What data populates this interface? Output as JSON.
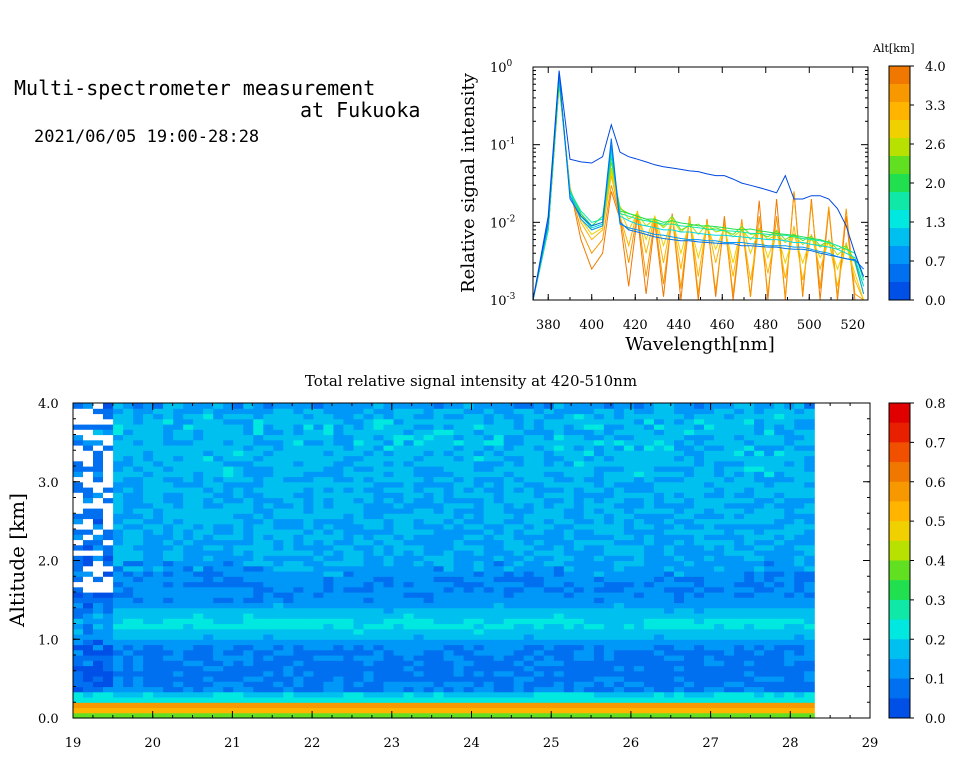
{
  "header": {
    "title_line1": "Multi-spectrometer measurement",
    "title_line2": "at Fukuoka",
    "date_range": "2021/06/05 19:00-28:28"
  },
  "chart_data": [
    {
      "type": "line",
      "title": "",
      "xlabel": "Wavelength[nm]",
      "ylabel": "Relative signal intensity",
      "xlim": [
        373,
        527
      ],
      "ylim": [
        0.001,
        1
      ],
      "yscale": "log",
      "x_ticks": [
        380,
        400,
        420,
        440,
        460,
        480,
        500,
        520
      ],
      "y_ticks": [
        {
          "base": "10",
          "exp": "-3",
          "value": 0.001
        },
        {
          "base": "10",
          "exp": "-2",
          "value": 0.01
        },
        {
          "base": "10",
          "exp": "-1",
          "value": 0.1
        },
        {
          "base": "10",
          "exp": "0",
          "value": 1
        }
      ],
      "colorbar": {
        "label": "Alt[km]",
        "ticks": [
          "4.0",
          "3.3",
          "2.6",
          "2.0",
          "1.3",
          "0.7",
          "0.0"
        ],
        "colors": [
          "#f07800",
          "#f89800",
          "#ffb400",
          "#f0d000",
          "#b8e000",
          "#60e020",
          "#20e050",
          "#10e8a8",
          "#00e8e0",
          "#00c0f0",
          "#0098f8",
          "#0070f0",
          "#0050e8"
        ]
      },
      "x": [
        373,
        380,
        385,
        390,
        395,
        400,
        405,
        409,
        413,
        417,
        421,
        425,
        429,
        433,
        437,
        441,
        445,
        449,
        453,
        457,
        461,
        465,
        469,
        473,
        477,
        481,
        485,
        489,
        493,
        497,
        501,
        505,
        509,
        513,
        517,
        521,
        525
      ],
      "series": [
        {
          "altitude": 0.0,
          "color": "#0048e0",
          "values": [
            0.001,
            0.012,
            0.9,
            0.065,
            0.06,
            0.058,
            0.07,
            0.18,
            0.08,
            0.07,
            0.065,
            0.06,
            0.055,
            0.052,
            0.05,
            0.048,
            0.046,
            0.045,
            0.042,
            0.04,
            0.04,
            0.036,
            0.032,
            0.03,
            0.028,
            0.026,
            0.024,
            0.04,
            0.02,
            0.02,
            0.022,
            0.022,
            0.02,
            0.015,
            0.009,
            0.004,
            0.002
          ]
        },
        {
          "altitude": 0.3,
          "color": "#0070f0",
          "values": [
            0.001,
            0.01,
            0.85,
            0.02,
            0.012,
            0.009,
            0.01,
            0.12,
            0.01,
            0.008,
            0.0075,
            0.007,
            0.0065,
            0.0062,
            0.006,
            0.0058,
            0.0058,
            0.0056,
            0.0055,
            0.0054,
            0.0053,
            0.0053,
            0.005,
            0.005,
            0.0049,
            0.0048,
            0.0048,
            0.0046,
            0.0045,
            0.0045,
            0.0043,
            0.004,
            0.0038,
            0.0036,
            0.0034,
            0.0033,
            0.0025
          ]
        },
        {
          "altitude": 0.7,
          "color": "#0098f8",
          "values": [
            0.001,
            0.01,
            0.8,
            0.022,
            0.011,
            0.008,
            0.009,
            0.1,
            0.0095,
            0.0085,
            0.008,
            0.0075,
            0.007,
            0.0068,
            0.0065,
            0.0062,
            0.006,
            0.006,
            0.0058,
            0.0058,
            0.0055,
            0.0055,
            0.0055,
            0.0053,
            0.0052,
            0.005,
            0.005,
            0.005,
            0.0048,
            0.0048,
            0.0045,
            0.0042,
            0.004,
            0.0036,
            0.0034,
            0.0032,
            0.0012
          ]
        },
        {
          "altitude": 1.0,
          "color": "#00d8e8",
          "values": [
            0.001,
            0.009,
            0.75,
            0.024,
            0.012,
            0.0085,
            0.0095,
            0.09,
            0.012,
            0.0105,
            0.0095,
            0.009,
            0.0085,
            0.008,
            0.008,
            0.0075,
            0.0075,
            0.0072,
            0.007,
            0.0068,
            0.0068,
            0.0066,
            0.0065,
            0.0063,
            0.0062,
            0.006,
            0.006,
            0.0058,
            0.0055,
            0.0055,
            0.0052,
            0.005,
            0.0048,
            0.0045,
            0.004,
            0.0035,
            0.0015
          ]
        },
        {
          "altitude": 1.3,
          "color": "#10e8a8",
          "values": [
            0.001,
            0.008,
            0.7,
            0.025,
            0.014,
            0.01,
            0.011,
            0.08,
            0.013,
            0.012,
            0.011,
            0.0105,
            0.01,
            0.0095,
            0.0095,
            0.009,
            0.0088,
            0.0085,
            0.0082,
            0.008,
            0.0078,
            0.0077,
            0.0075,
            0.0072,
            0.0072,
            0.007,
            0.0068,
            0.0068,
            0.0065,
            0.0062,
            0.006,
            0.0058,
            0.0055,
            0.005,
            0.0045,
            0.004,
            0.0018
          ]
        },
        {
          "altitude": 1.7,
          "color": "#20e050",
          "values": [
            0.001,
            0.008,
            0.65,
            0.026,
            0.013,
            0.009,
            0.012,
            0.07,
            0.014,
            0.013,
            0.012,
            0.011,
            0.011,
            0.01,
            0.0105,
            0.0098,
            0.0095,
            0.009,
            0.009,
            0.0088,
            0.0085,
            0.0082,
            0.008,
            0.0082,
            0.0078,
            0.0075,
            0.0072,
            0.007,
            0.0068,
            0.0065,
            0.0062,
            0.006,
            0.0055,
            0.005,
            0.0045,
            0.004,
            0.0018
          ]
        },
        {
          "altitude": 2.0,
          "color": "#70e020",
          "values": [
            0.001,
            0.008,
            0.6,
            0.025,
            0.012,
            0.009,
            0.01,
            0.06,
            0.015,
            0.013,
            0.012,
            0.011,
            0.01,
            0.009,
            0.012,
            0.008,
            0.009,
            0.0095,
            0.008,
            0.0085,
            0.0078,
            0.007,
            0.0088,
            0.007,
            0.0072,
            0.0065,
            0.0078,
            0.006,
            0.007,
            0.0058,
            0.0066,
            0.005,
            0.0058,
            0.0045,
            0.005,
            0.0032,
            0.0015
          ]
        },
        {
          "altitude": 2.3,
          "color": "#b8e000",
          "values": [
            0.001,
            0.008,
            0.6,
            0.026,
            0.013,
            0.008,
            0.009,
            0.05,
            0.016,
            0.011,
            0.013,
            0.009,
            0.011,
            0.0085,
            0.011,
            0.0075,
            0.0095,
            0.007,
            0.0095,
            0.0075,
            0.008,
            0.0065,
            0.008,
            0.006,
            0.0078,
            0.006,
            0.007,
            0.0055,
            0.0068,
            0.0052,
            0.006,
            0.0048,
            0.0055,
            0.0038,
            0.0048,
            0.003,
            0.0012
          ]
        },
        {
          "altitude": 2.6,
          "color": "#f0d000",
          "values": [
            0.001,
            0.008,
            0.6,
            0.027,
            0.011,
            0.007,
            0.0085,
            0.045,
            0.014,
            0.008,
            0.013,
            0.006,
            0.012,
            0.005,
            0.011,
            0.004,
            0.01,
            0.0035,
            0.009,
            0.0045,
            0.0085,
            0.003,
            0.009,
            0.004,
            0.008,
            0.0035,
            0.0075,
            0.003,
            0.007,
            0.003,
            0.0065,
            0.0035,
            0.0055,
            0.0025,
            0.005,
            0.0022,
            0.001
          ]
        },
        {
          "altitude": 3.0,
          "color": "#ffb400",
          "values": [
            0.001,
            0.008,
            0.6,
            0.028,
            0.01,
            0.006,
            0.008,
            0.04,
            0.012,
            0.005,
            0.014,
            0.004,
            0.012,
            0.003,
            0.012,
            0.0025,
            0.011,
            0.002,
            0.01,
            0.003,
            0.009,
            0.002,
            0.0095,
            0.0018,
            0.0085,
            0.0022,
            0.008,
            0.0019,
            0.009,
            0.0018,
            0.007,
            0.0025,
            0.006,
            0.0015,
            0.0055,
            0.0018,
            0.001
          ]
        },
        {
          "altitude": 3.3,
          "color": "#f89800",
          "values": [
            0.001,
            0.008,
            0.6,
            0.028,
            0.008,
            0.004,
            0.006,
            0.03,
            0.012,
            0.003,
            0.013,
            0.002,
            0.011,
            0.0016,
            0.012,
            0.0014,
            0.012,
            0.0012,
            0.01,
            0.0013,
            0.01,
            0.0012,
            0.011,
            0.0011,
            0.012,
            0.0012,
            0.012,
            0.0011,
            0.025,
            0.0012,
            0.018,
            0.0014,
            0.016,
            0.0011,
            0.015,
            0.0012,
            0.001
          ]
        },
        {
          "altitude": 3.6,
          "color": "#f07800",
          "values": [
            0.001,
            0.008,
            0.6,
            0.028,
            0.006,
            0.0025,
            0.004,
            0.025,
            0.011,
            0.0015,
            0.012,
            0.0012,
            0.01,
            0.0011,
            0.013,
            0.001,
            0.012,
            0.001,
            0.011,
            0.0011,
            0.012,
            0.001,
            0.01,
            0.0011,
            0.019,
            0.001,
            0.02,
            0.001,
            0.025,
            0.0011,
            0.02,
            0.001,
            0.015,
            0.001,
            0.012,
            0.001,
            0.001
          ]
        }
      ]
    },
    {
      "type": "heatmap",
      "title": "Total relative signal intensity at 420-510nm",
      "xlabel": "",
      "ylabel": "Altitude [km]",
      "xlim": [
        19,
        29
      ],
      "ylim": [
        0,
        4
      ],
      "data_x_end": 28.3,
      "x_ticks": [
        "19",
        "20",
        "21",
        "22",
        "23",
        "24",
        "25",
        "26",
        "27",
        "28",
        "29"
      ],
      "y_ticks": [
        "0.0",
        "1.0",
        "2.0",
        "3.0",
        "4.0"
      ],
      "colorbar": {
        "ticks": [
          "0.0",
          "0.1",
          "0.2",
          "0.3",
          "0.4",
          "0.5",
          "0.6",
          "0.7",
          "0.8"
        ],
        "vmin": 0,
        "vmax": 0.8,
        "colors": [
          "#0050e8",
          "#0070f0",
          "#0098f8",
          "#00c0f0",
          "#00e8e0",
          "#10e8a8",
          "#20e050",
          "#60e020",
          "#b8e000",
          "#f0d000",
          "#ffb400",
          "#f89800",
          "#f07800",
          "#f05000",
          "#e82000",
          "#e00000"
        ]
      },
      "altitude_profile": [
        [
          0.0,
          0.3
        ],
        [
          0.15,
          0.65
        ],
        [
          0.2,
          0.45
        ],
        [
          0.25,
          0.12
        ],
        [
          0.3,
          0.2
        ],
        [
          0.35,
          0.1
        ],
        [
          0.6,
          0.09
        ],
        [
          0.9,
          0.1
        ],
        [
          1.05,
          0.17
        ],
        [
          1.2,
          0.22
        ],
        [
          1.35,
          0.17
        ],
        [
          1.5,
          0.11
        ],
        [
          1.7,
          0.1
        ],
        [
          2.0,
          0.14
        ],
        [
          3.0,
          0.16
        ],
        [
          3.8,
          0.17
        ],
        [
          4.0,
          0.12
        ]
      ]
    }
  ]
}
